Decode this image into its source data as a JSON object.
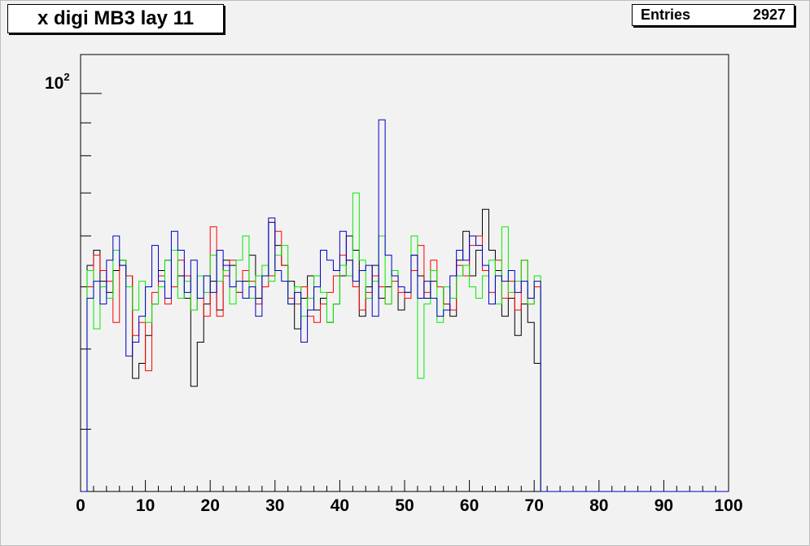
{
  "title": "x digi MB3 lay 11",
  "stats": {
    "label": "Entries",
    "value": "2927"
  },
  "chart_data": {
    "type": "histogram-step",
    "title": "x digi MB3 lay 11",
    "entries": 2927,
    "xlim": [
      0,
      100
    ],
    "ylog": true,
    "ylim": [
      24,
      115
    ],
    "y_tick_label": "10^2",
    "x_ticks": [
      0,
      10,
      20,
      30,
      40,
      50,
      60,
      70,
      80,
      90,
      100
    ],
    "series": [
      {
        "color": "#000000",
        "values": [
          0,
          54,
          57,
          51,
          49,
          53,
          55,
          52,
          36,
          38,
          42,
          47,
          53,
          55,
          50,
          52,
          48,
          35,
          41,
          47,
          51,
          46,
          55,
          54,
          49,
          51,
          56,
          48,
          52,
          63,
          58,
          54,
          51,
          43,
          48,
          52,
          46,
          48,
          44,
          47,
          52,
          60,
          57,
          45,
          50,
          54,
          48,
          50,
          53,
          46,
          49,
          56,
          52,
          48,
          51,
          50,
          47,
          45,
          55,
          61,
          52,
          57,
          66,
          57,
          53,
          45,
          48,
          42,
          47,
          44,
          38,
          0,
          0,
          0,
          0,
          0,
          0,
          0,
          0,
          0,
          0,
          0,
          0,
          0,
          0,
          0,
          0,
          0,
          0,
          0,
          0,
          0,
          0,
          0,
          0,
          0,
          0,
          0,
          0,
          0
        ]
      },
      {
        "color": "#ff0000",
        "values": [
          0,
          50,
          56,
          53,
          51,
          44,
          54,
          52,
          42,
          44,
          37,
          49,
          52,
          47,
          50,
          55,
          52,
          46,
          48,
          45,
          62,
          45,
          52,
          55,
          49,
          53,
          51,
          47,
          50,
          52,
          61,
          54,
          48,
          47,
          50,
          45,
          44,
          47,
          49,
          52,
          56,
          55,
          50,
          46,
          49,
          52,
          50,
          47,
          51,
          49,
          48,
          53,
          58,
          49,
          55,
          50,
          47,
          46,
          54,
          52,
          58,
          60,
          53,
          49,
          55,
          48,
          51,
          46,
          55,
          47,
          50,
          0,
          0,
          0,
          0,
          0,
          0,
          0,
          0,
          0,
          0,
          0,
          0,
          0,
          0,
          0,
          0,
          0,
          0,
          0,
          0,
          0,
          0,
          0,
          0,
          0,
          0,
          0,
          0,
          0
        ]
      },
      {
        "color": "#00ee00",
        "values": [
          0,
          53,
          43,
          50,
          48,
          57,
          55,
          50,
          46,
          51,
          44,
          47,
          50,
          55,
          57,
          48,
          51,
          46,
          52,
          49,
          56,
          51,
          53,
          47,
          55,
          60,
          48,
          52,
          54,
          51,
          56,
          58,
          47,
          50,
          45,
          48,
          52,
          49,
          44,
          47,
          54,
          52,
          70,
          55,
          48,
          51,
          60,
          47,
          53,
          50,
          49,
          60,
          36,
          47,
          53,
          44,
          50,
          48,
          52,
          54,
          50,
          48,
          52,
          55,
          47,
          62,
          49,
          51,
          55,
          47,
          52,
          0,
          0,
          0,
          0,
          0,
          0,
          0,
          0,
          0,
          0,
          0,
          0,
          0,
          0,
          0,
          0,
          0,
          0,
          0,
          0,
          0,
          0,
          0,
          0,
          0,
          0,
          0,
          0,
          0
        ]
      },
      {
        "color": "#0000cc",
        "values": [
          0,
          48,
          51,
          47,
          55,
          60,
          54,
          39,
          41,
          45,
          50,
          58,
          51,
          48,
          61,
          57,
          49,
          55,
          48,
          52,
          49,
          57,
          54,
          50,
          51,
          48,
          50,
          45,
          52,
          64,
          53,
          51,
          47,
          49,
          41,
          46,
          50,
          57,
          55,
          53,
          61,
          55,
          51,
          53,
          54,
          45,
          91,
          56,
          52,
          50,
          49,
          56,
          48,
          51,
          48,
          45,
          46,
          52,
          57,
          55,
          60,
          58,
          54,
          47,
          52,
          51,
          53,
          49,
          51,
          48,
          51,
          0,
          0,
          0,
          0,
          0,
          0,
          0,
          0,
          0,
          0,
          0,
          0,
          0,
          0,
          0,
          0,
          0,
          0,
          0,
          0,
          0,
          0,
          0,
          0,
          0,
          0,
          0,
          0,
          0
        ]
      }
    ]
  }
}
